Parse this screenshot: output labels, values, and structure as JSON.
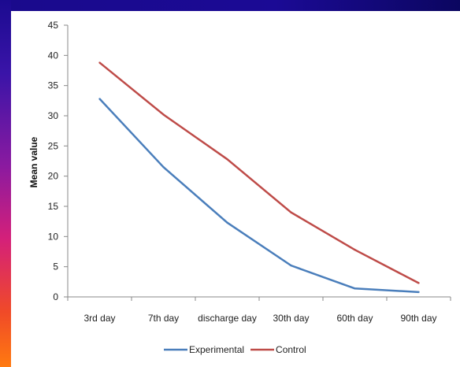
{
  "chart_data": {
    "type": "line",
    "categories": [
      "3rd day",
      "7th day",
      "discharge day",
      "30th day",
      "60th day",
      "90th day"
    ],
    "series": [
      {
        "name": "Experimental",
        "color": "#4a7ebb",
        "values": [
          32.8,
          21.5,
          12.3,
          5.2,
          1.4,
          0.8
        ]
      },
      {
        "name": "Control",
        "color": "#be4b48",
        "values": [
          38.8,
          30.2,
          22.8,
          14.0,
          7.8,
          2.3
        ]
      }
    ],
    "ylabel": "Mean value",
    "xlabel": "",
    "ylim": [
      0,
      45
    ],
    "yticks": [
      0,
      5,
      10,
      15,
      20,
      25,
      30,
      35,
      40,
      45
    ],
    "legend_position": "bottom",
    "grid": false
  },
  "frame": {
    "border_top_color": "#1a0a8c",
    "border_left_gradient": [
      "#1b0a90",
      "#8a1aa0",
      "#d4207a",
      "#ff7a10"
    ]
  }
}
